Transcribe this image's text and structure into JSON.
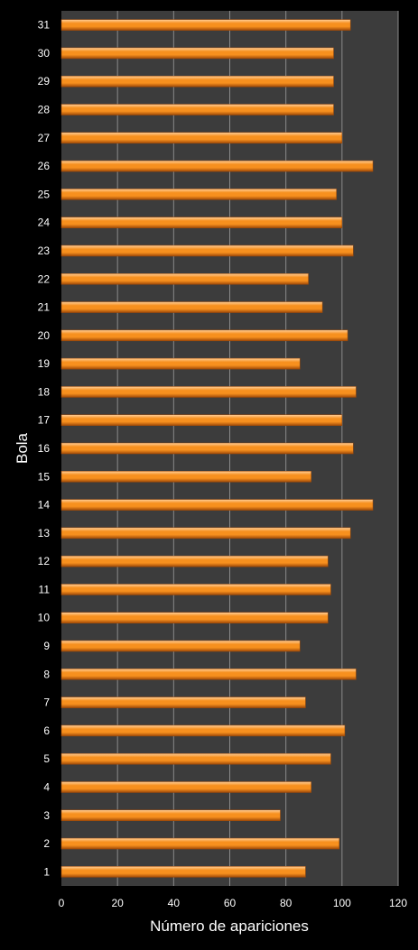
{
  "chart_data": {
    "type": "bar",
    "orientation": "horizontal",
    "categories": [
      "1",
      "2",
      "3",
      "4",
      "5",
      "6",
      "7",
      "8",
      "9",
      "10",
      "11",
      "12",
      "13",
      "14",
      "15",
      "16",
      "17",
      "18",
      "19",
      "20",
      "21",
      "22",
      "23",
      "24",
      "25",
      "26",
      "27",
      "28",
      "29",
      "30",
      "31"
    ],
    "values": [
      87,
      99,
      78,
      89,
      96,
      101,
      87,
      105,
      85,
      95,
      96,
      95,
      103,
      111,
      89,
      104,
      100,
      105,
      85,
      102,
      93,
      88,
      104,
      100,
      98,
      111,
      100,
      97,
      97,
      97,
      103
    ],
    "xlabel": "Número de apariciones",
    "ylabel": "Bola",
    "xlim": [
      0,
      120
    ],
    "xticks": [
      0,
      20,
      40,
      60,
      80,
      100,
      120
    ],
    "grid": "vertical",
    "legend": "none",
    "colors": {
      "background": "#000000",
      "plot_area": "#3c3c3c",
      "gridline": "#8a8a8a",
      "bar_top": "#ffcf9a",
      "bar_mid": "#f7901e",
      "bar_bottom": "#a04a08",
      "text": "#ffffff"
    }
  }
}
